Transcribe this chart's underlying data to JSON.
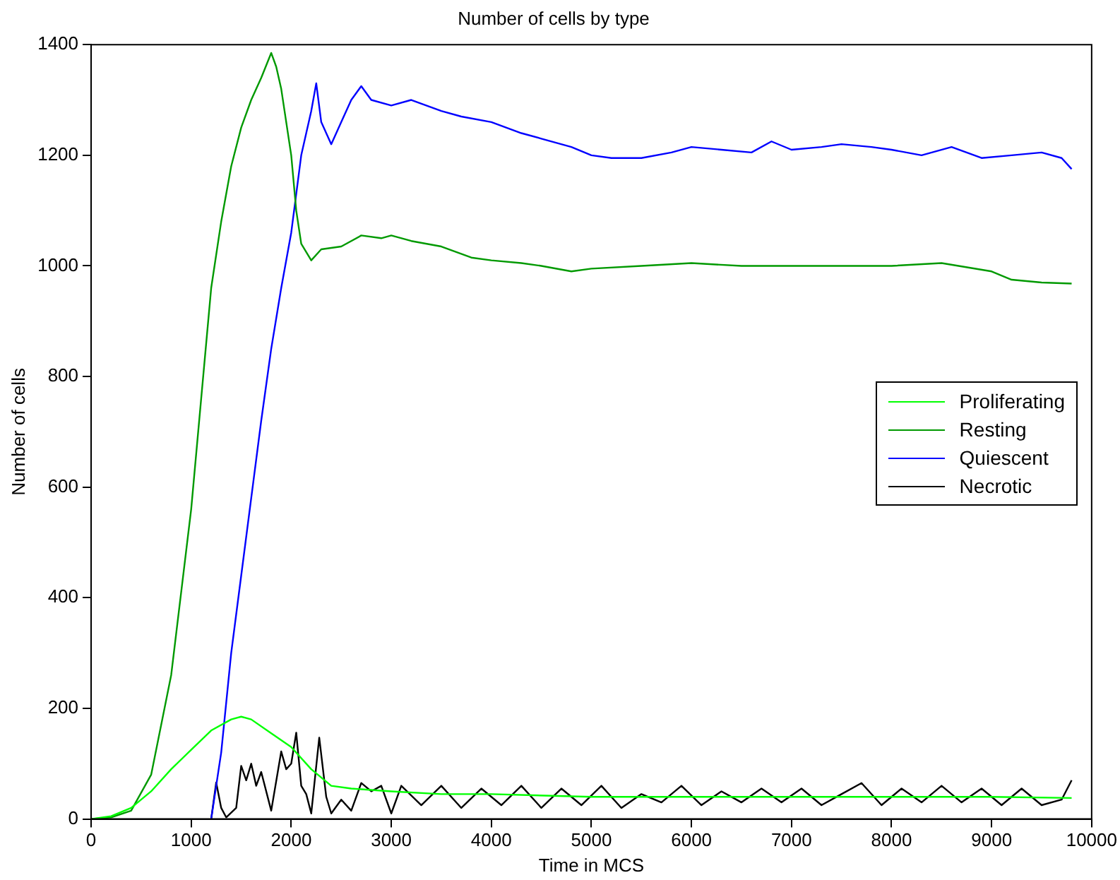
{
  "chart_data": {
    "type": "line",
    "title": "Number of cells by type",
    "xlabel": "Time in MCS",
    "ylabel": "Number of cells",
    "xlim": [
      0,
      10000
    ],
    "xticks": [
      0,
      1000,
      2000,
      3000,
      4000,
      5000,
      6000,
      7000,
      8000,
      9000,
      10000
    ],
    "ylim": [
      0,
      1400
    ],
    "yticks": [
      0,
      200,
      400,
      600,
      800,
      1000,
      1200,
      1400
    ],
    "grid": false,
    "legend": "right",
    "marker": "none",
    "line_style": "solid",
    "series": [
      {
        "name": "Proliferating",
        "color": "#00ff00",
        "x": [
          0,
          200,
          400,
          600,
          800,
          1000,
          1200,
          1400,
          1500,
          1600,
          1800,
          2000,
          2200,
          2400,
          2600,
          3000,
          3500,
          4000,
          5000,
          6000,
          7000,
          8000,
          9000,
          9800
        ],
        "values": [
          0,
          5,
          20,
          50,
          90,
          125,
          160,
          180,
          185,
          180,
          155,
          130,
          90,
          60,
          55,
          50,
          45,
          45,
          40,
          40,
          40,
          40,
          40,
          38
        ]
      },
      {
        "name": "Resting",
        "color": "#009900",
        "x": [
          0,
          200,
          400,
          600,
          800,
          1000,
          1100,
          1200,
          1300,
          1400,
          1500,
          1600,
          1700,
          1800,
          1850,
          1900,
          2000,
          2050,
          2100,
          2200,
          2300,
          2500,
          2700,
          2900,
          3000,
          3200,
          3500,
          3800,
          4000,
          4300,
          4500,
          4800,
          5000,
          5500,
          6000,
          6500,
          7000,
          7500,
          8000,
          8500,
          9000,
          9200,
          9500,
          9800
        ],
        "values": [
          0,
          3,
          15,
          80,
          260,
          560,
          760,
          960,
          1080,
          1180,
          1250,
          1300,
          1340,
          1385,
          1360,
          1320,
          1200,
          1100,
          1040,
          1010,
          1030,
          1035,
          1055,
          1050,
          1055,
          1045,
          1035,
          1015,
          1010,
          1005,
          1000,
          990,
          995,
          1000,
          1005,
          1000,
          1000,
          1000,
          1000,
          1005,
          990,
          975,
          970,
          968
        ]
      },
      {
        "name": "Quiescent",
        "color": "#0000ff",
        "x": [
          1200,
          1300,
          1400,
          1500,
          1600,
          1700,
          1800,
          1900,
          2000,
          2050,
          2100,
          2200,
          2250,
          2300,
          2400,
          2500,
          2600,
          2700,
          2800,
          3000,
          3200,
          3500,
          3700,
          4000,
          4300,
          4500,
          4800,
          5000,
          5200,
          5500,
          5800,
          6000,
          6300,
          6600,
          6800,
          7000,
          7300,
          7500,
          7800,
          8000,
          8300,
          8600,
          8900,
          9200,
          9500,
          9700,
          9800
        ],
        "values": [
          0,
          120,
          300,
          440,
          580,
          720,
          850,
          960,
          1060,
          1130,
          1200,
          1280,
          1330,
          1260,
          1220,
          1260,
          1300,
          1325,
          1300,
          1290,
          1300,
          1280,
          1270,
          1260,
          1240,
          1230,
          1215,
          1200,
          1195,
          1195,
          1205,
          1215,
          1210,
          1205,
          1225,
          1210,
          1215,
          1220,
          1215,
          1210,
          1200,
          1215,
          1195,
          1200,
          1205,
          1195,
          1175
        ]
      },
      {
        "name": "Necrotic",
        "color": "#000000",
        "x": [
          1200,
          1250,
          1300,
          1350,
          1450,
          1500,
          1550,
          1600,
          1650,
          1700,
          1800,
          1900,
          1950,
          2000,
          2050,
          2100,
          2150,
          2200,
          2280,
          2350,
          2400,
          2500,
          2600,
          2700,
          2800,
          2900,
          3000,
          3100,
          3300,
          3500,
          3700,
          3900,
          4100,
          4300,
          4500,
          4700,
          4900,
          5100,
          5300,
          5500,
          5700,
          5900,
          6100,
          6300,
          6500,
          6700,
          6900,
          7100,
          7300,
          7500,
          7700,
          7900,
          8100,
          8300,
          8500,
          8700,
          8900,
          9100,
          9300,
          9500,
          9700,
          9800
        ],
        "values": [
          0,
          66,
          20,
          3,
          20,
          96,
          70,
          100,
          60,
          85,
          15,
          122,
          90,
          100,
          156,
          60,
          45,
          10,
          147,
          40,
          10,
          35,
          15,
          65,
          50,
          60,
          10,
          60,
          25,
          60,
          20,
          55,
          25,
          60,
          20,
          55,
          25,
          60,
          20,
          45,
          30,
          60,
          25,
          50,
          30,
          55,
          30,
          55,
          25,
          45,
          65,
          25,
          55,
          30,
          60,
          30,
          55,
          25,
          55,
          25,
          35,
          70
        ]
      }
    ]
  }
}
